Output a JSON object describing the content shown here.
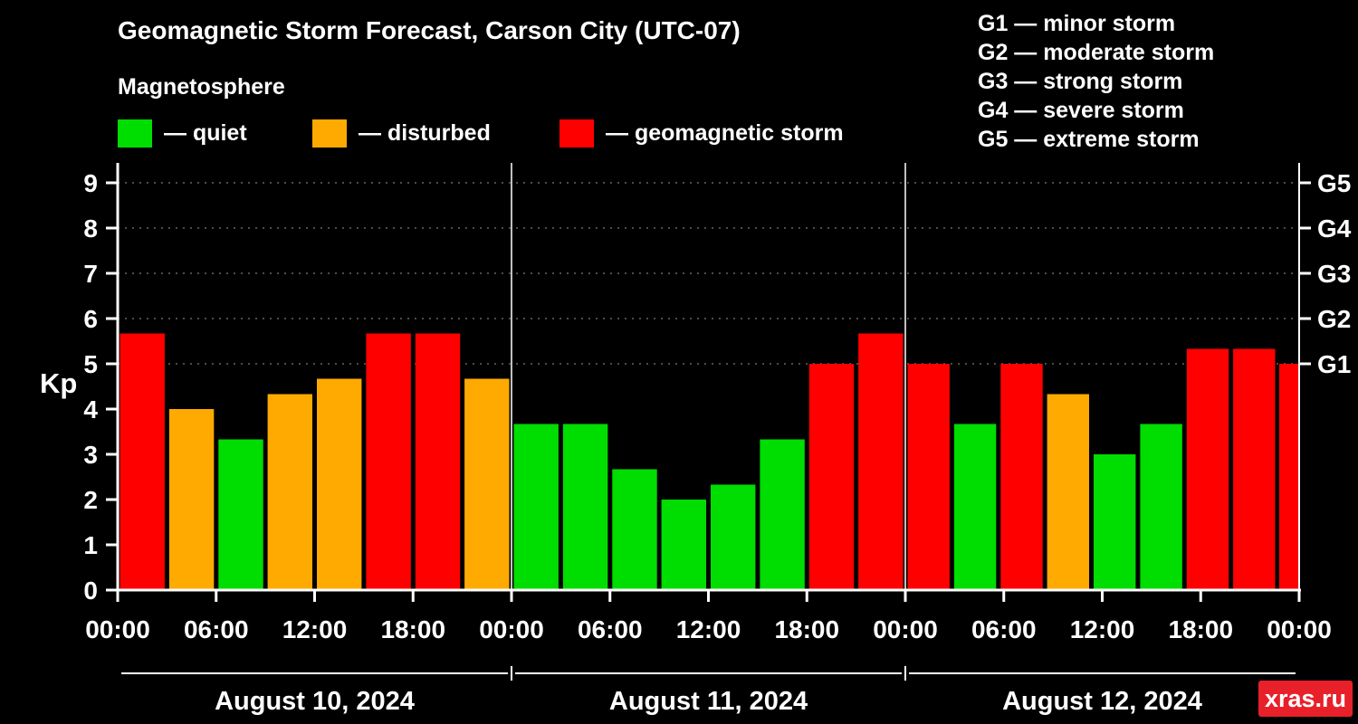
{
  "header": {
    "title": "Geomagnetic Storm Forecast, Carson City (UTC-07)",
    "subtitle": "Magnetosphere"
  },
  "legend": {
    "items": [
      {
        "label": "— quiet",
        "level": "quiet"
      },
      {
        "label": "— disturbed",
        "level": "disturbed"
      },
      {
        "label": "— geomagnetic storm",
        "level": "storm"
      }
    ]
  },
  "g_scale_legend": {
    "items": [
      "G1 — minor storm",
      "G2 — moderate storm",
      "G3 — strong storm",
      "G4 — severe storm",
      "G5 — extreme storm"
    ]
  },
  "watermark": "xras.ru",
  "colors": {
    "background": "#000000",
    "quiet": "#00dd00",
    "disturbed": "#ffaa00",
    "storm": "#ff0000",
    "axis": "#ffffff",
    "grid": "#999999",
    "text": "#ffffff",
    "watermark_bg": "#e8202a"
  },
  "chart_data": {
    "type": "bar",
    "title": "Geomagnetic Storm Forecast, Carson City (UTC-07)",
    "ylabel": "Kp",
    "ylim": [
      0,
      9.4
    ],
    "yticks": [
      0,
      1,
      2,
      3,
      4,
      5,
      6,
      7,
      8,
      9
    ],
    "grid_levels": [
      5,
      6,
      7,
      8,
      9
    ],
    "right_axis_labels": [
      {
        "kp": 5,
        "label": "G1"
      },
      {
        "kp": 6,
        "label": "G2"
      },
      {
        "kp": 7,
        "label": "G3"
      },
      {
        "kp": 8,
        "label": "G4"
      },
      {
        "kp": 9,
        "label": "G5"
      }
    ],
    "time_ticks": [
      "00:00",
      "06:00",
      "12:00",
      "18:00"
    ],
    "closing_tick": "00:00",
    "interval_hours": 3,
    "days": [
      {
        "date": "August 10, 2024",
        "bars": [
          {
            "kp": 5.67,
            "level": "storm"
          },
          {
            "kp": 4.0,
            "level": "disturbed"
          },
          {
            "kp": 3.33,
            "level": "quiet"
          },
          {
            "kp": 4.33,
            "level": "disturbed"
          },
          {
            "kp": 4.67,
            "level": "disturbed"
          },
          {
            "kp": 5.67,
            "level": "storm"
          },
          {
            "kp": 5.67,
            "level": "storm"
          },
          {
            "kp": 4.67,
            "level": "disturbed"
          }
        ]
      },
      {
        "date": "August 11, 2024",
        "bars": [
          {
            "kp": 3.67,
            "level": "quiet"
          },
          {
            "kp": 3.67,
            "level": "quiet"
          },
          {
            "kp": 2.67,
            "level": "quiet"
          },
          {
            "kp": 2.0,
            "level": "quiet"
          },
          {
            "kp": 2.33,
            "level": "quiet"
          },
          {
            "kp": 3.33,
            "level": "quiet"
          },
          {
            "kp": 5.0,
            "level": "storm"
          },
          {
            "kp": 5.67,
            "level": "storm"
          }
        ]
      },
      {
        "date": "August 12, 2024",
        "bars": [
          {
            "kp": 5.0,
            "level": "storm"
          },
          {
            "kp": 3.67,
            "level": "quiet"
          },
          {
            "kp": 5.0,
            "level": "storm"
          },
          {
            "kp": 4.33,
            "level": "disturbed"
          },
          {
            "kp": 3.0,
            "level": "quiet"
          },
          {
            "kp": 3.67,
            "level": "quiet"
          },
          {
            "kp": 5.33,
            "level": "storm"
          },
          {
            "kp": 5.33,
            "level": "storm"
          }
        ]
      }
    ],
    "partial_next_bar": {
      "kp": 5.0,
      "level": "storm"
    }
  }
}
